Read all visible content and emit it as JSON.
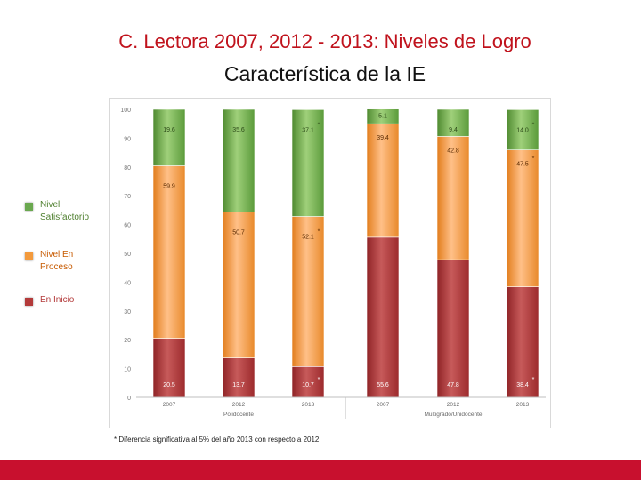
{
  "title": "C. Lectora 2007, 2012 - 2013: Niveles de Logro",
  "subtitle": "Característica de la IE",
  "legend": [
    {
      "label": "Nivel Satisfactorio",
      "color": "#6aa84f",
      "text_color": "#4e7f2e"
    },
    {
      "label": "Nivel En Proceso",
      "color": "#f39a3c",
      "text_color": "#c75a00"
    },
    {
      "label": "En Inicio",
      "color": "#b33a3a",
      "text_color": "#b33a3a"
    }
  ],
  "footnote": "* Diferencia significativa al 5% del año 2013 con respecto a 2012",
  "chart_data": {
    "type": "bar",
    "stacked": true,
    "ylim": [
      0,
      100
    ],
    "yticks": [
      "0",
      "10",
      "20",
      "30",
      "40",
      "50",
      "60",
      "70",
      "80",
      "90",
      "100"
    ],
    "categories": [
      "2007",
      "2012",
      "2013",
      "2007",
      "2012",
      "2013"
    ],
    "groups": [
      {
        "label": "Polidocente",
        "categories": [
          "2007",
          "2012",
          "2013"
        ]
      },
      {
        "label": "Multigrado/Unidocente",
        "categories": [
          "2007",
          "2012",
          "2013"
        ]
      }
    ],
    "series": [
      {
        "name": "En Inicio",
        "color": "#b33a3a",
        "values": [
          20.5,
          13.7,
          10.7,
          55.6,
          47.8,
          38.4
        ],
        "labels": [
          "20.5",
          "13.7",
          "10.7",
          "55.6",
          "47.8",
          "38.4"
        ],
        "significant": [
          false,
          false,
          true,
          false,
          false,
          true
        ]
      },
      {
        "name": "Nivel En Proceso",
        "color": "#f39a3c",
        "values": [
          59.9,
          50.7,
          52.1,
          39.4,
          42.8,
          47.5
        ],
        "labels": [
          "59.9",
          "50.7",
          "52.1",
          "39.4",
          "42.8",
          "47.5"
        ],
        "significant": [
          false,
          false,
          true,
          false,
          false,
          true
        ]
      },
      {
        "name": "Nivel Satisfactorio",
        "color": "#6aa84f",
        "values": [
          19.6,
          35.6,
          37.1,
          5.1,
          9.4,
          14.0
        ],
        "labels": [
          "19.6",
          "35.6",
          "37.1",
          "5.1",
          "9.4",
          "14.0"
        ],
        "significant": [
          false,
          false,
          true,
          false,
          false,
          true
        ]
      }
    ],
    "significance_marker": "*"
  }
}
